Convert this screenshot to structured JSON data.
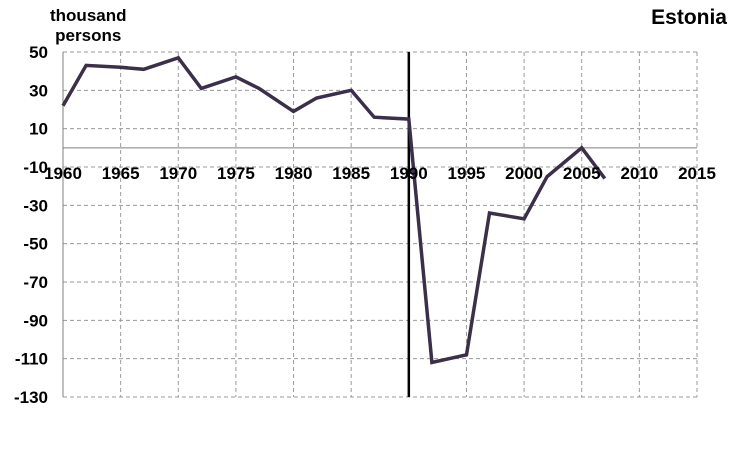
{
  "chart_data": {
    "type": "line",
    "title": "Estonia",
    "ylabel": "thousand persons",
    "xlabel": "",
    "xlim": [
      1960,
      2015
    ],
    "ylim": [
      -130,
      50
    ],
    "xticks": [
      1960,
      1965,
      1970,
      1975,
      1980,
      1985,
      1990,
      1995,
      2000,
      2005,
      2010,
      2015
    ],
    "yticks": [
      50,
      30,
      10,
      -10,
      -30,
      -50,
      -70,
      -90,
      -110,
      -130
    ],
    "grid": true,
    "vertical_marker_x": 1990,
    "series": [
      {
        "name": "",
        "color": "#3b2f4a",
        "points": [
          [
            1960,
            22
          ],
          [
            1962,
            43
          ],
          [
            1965,
            42
          ],
          [
            1967,
            41
          ],
          [
            1970,
            47
          ],
          [
            1972,
            31
          ],
          [
            1975,
            37
          ],
          [
            1977,
            31
          ],
          [
            1980,
            19
          ],
          [
            1982,
            26
          ],
          [
            1985,
            30
          ],
          [
            1987,
            16
          ],
          [
            1990,
            15
          ],
          [
            1992,
            -112
          ],
          [
            1995,
            -108
          ],
          [
            1997,
            -34
          ],
          [
            2000,
            -37
          ],
          [
            2002,
            -15
          ],
          [
            2005,
            0
          ],
          [
            2007,
            -16
          ]
        ]
      }
    ]
  },
  "labels": {
    "unit_line1": "thousand",
    "unit_line2": "persons",
    "country": "Estonia"
  }
}
